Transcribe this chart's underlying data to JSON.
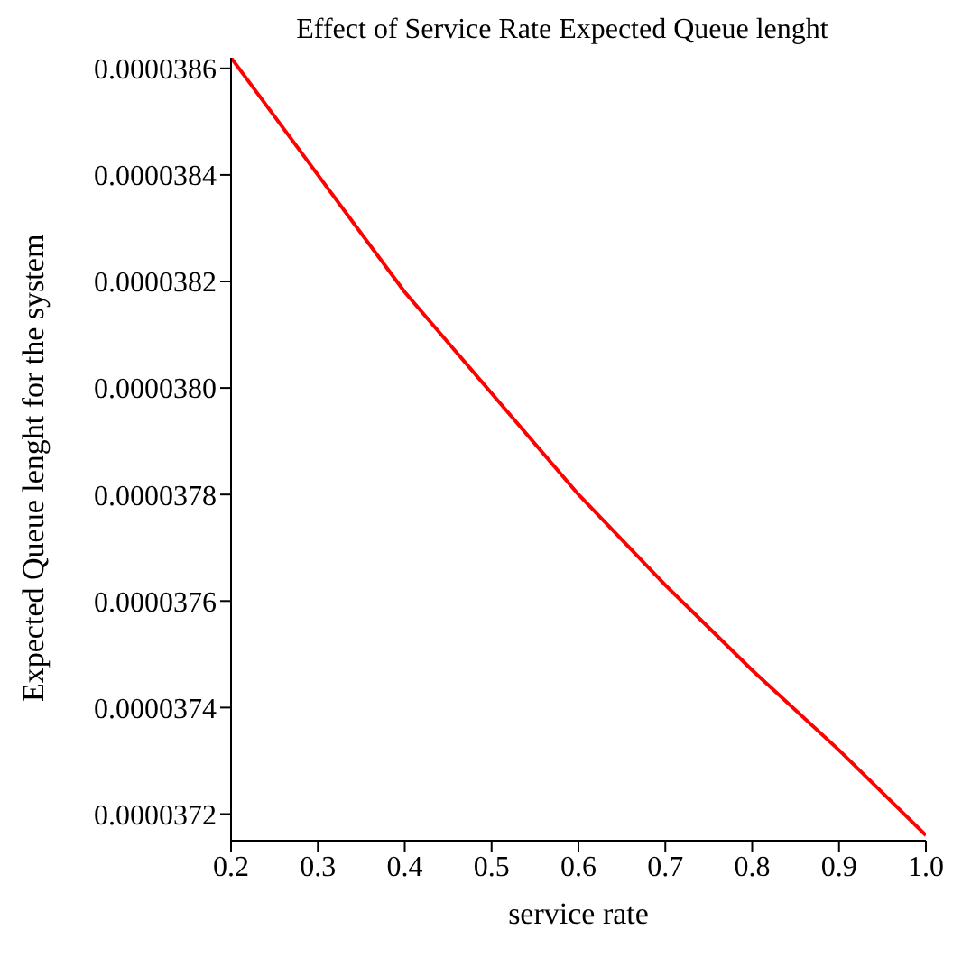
{
  "chart_data": {
    "type": "line",
    "title": "Effect of Service Rate Expected Queue lenght",
    "xlabel": "service rate",
    "ylabel": "Expected Queue lenght for the system",
    "x": [
      0.2,
      0.3,
      0.4,
      0.5,
      0.6,
      0.7,
      0.8,
      0.9,
      1.0
    ],
    "series": [
      {
        "color": "#ff0000",
        "values": [
          3.862e-05,
          3.84e-05,
          3.818e-05,
          3.799e-05,
          3.78e-05,
          3.763e-05,
          3.747e-05,
          3.732e-05,
          3.716e-05
        ]
      }
    ],
    "xlim": [
      0.2,
      1.0
    ],
    "ylim": [
      3.715e-05,
      3.862e-05
    ],
    "xticks": [
      {
        "value": 0.2,
        "label": "0.2"
      },
      {
        "value": 0.3,
        "label": "0.3"
      },
      {
        "value": 0.4,
        "label": "0.4"
      },
      {
        "value": 0.5,
        "label": "0.5"
      },
      {
        "value": 0.6,
        "label": "0.6"
      },
      {
        "value": 0.7,
        "label": "0.7"
      },
      {
        "value": 0.8,
        "label": "0.8"
      },
      {
        "value": 0.9,
        "label": "0.9"
      },
      {
        "value": 1.0,
        "label": "1.0"
      }
    ],
    "yticks": [
      {
        "value": 3.72e-05,
        "label": "0.0000372"
      },
      {
        "value": 3.74e-05,
        "label": "0.0000374"
      },
      {
        "value": 3.76e-05,
        "label": "0.0000376"
      },
      {
        "value": 3.78e-05,
        "label": "0.0000378"
      },
      {
        "value": 3.8e-05,
        "label": "0.0000380"
      },
      {
        "value": 3.82e-05,
        "label": "0.0000382"
      },
      {
        "value": 3.84e-05,
        "label": "0.0000384"
      },
      {
        "value": 3.86e-05,
        "label": "0.0000386"
      }
    ],
    "grid": false,
    "legend": false,
    "marker": "none",
    "line_style": "solid"
  }
}
